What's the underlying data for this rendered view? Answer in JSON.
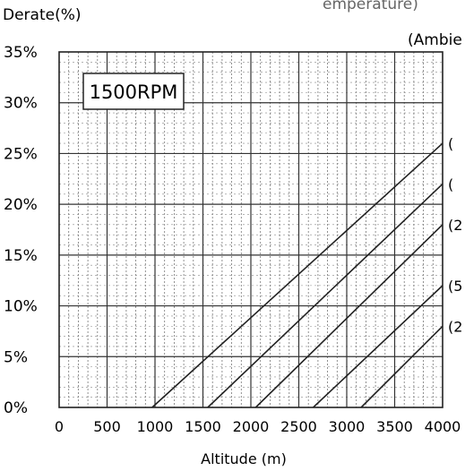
{
  "chart_data": {
    "type": "line",
    "title": "",
    "ylabel": "Derate(%)",
    "xlabel": "Altitude (m)",
    "header_cut": "emperature)",
    "legend_title": "(Ambie",
    "badge": "1500RPM",
    "xlim": [
      0,
      4000
    ],
    "ylim": [
      0,
      35
    ],
    "x_ticks": [
      "0",
      "500",
      "1000",
      "1500",
      "2000",
      "2500",
      "3000",
      "3500",
      "4000"
    ],
    "y_ticks": [
      "0%",
      "5%",
      "10%",
      "15%",
      "20%",
      "25%",
      "30%",
      "35%"
    ],
    "grid": true,
    "series": [
      {
        "label": "(",
        "x": [
          970,
          4000
        ],
        "y": [
          0,
          26
        ]
      },
      {
        "label": "(",
        "x": [
          1550,
          4000
        ],
        "y": [
          0,
          22
        ]
      },
      {
        "label": "(2",
        "x": [
          2050,
          4000
        ],
        "y": [
          0,
          18
        ]
      },
      {
        "label": "(5",
        "x": [
          2650,
          4000
        ],
        "y": [
          0,
          12
        ]
      },
      {
        "label": "(2",
        "x": [
          3150,
          4000
        ],
        "y": [
          0,
          8
        ]
      }
    ]
  }
}
